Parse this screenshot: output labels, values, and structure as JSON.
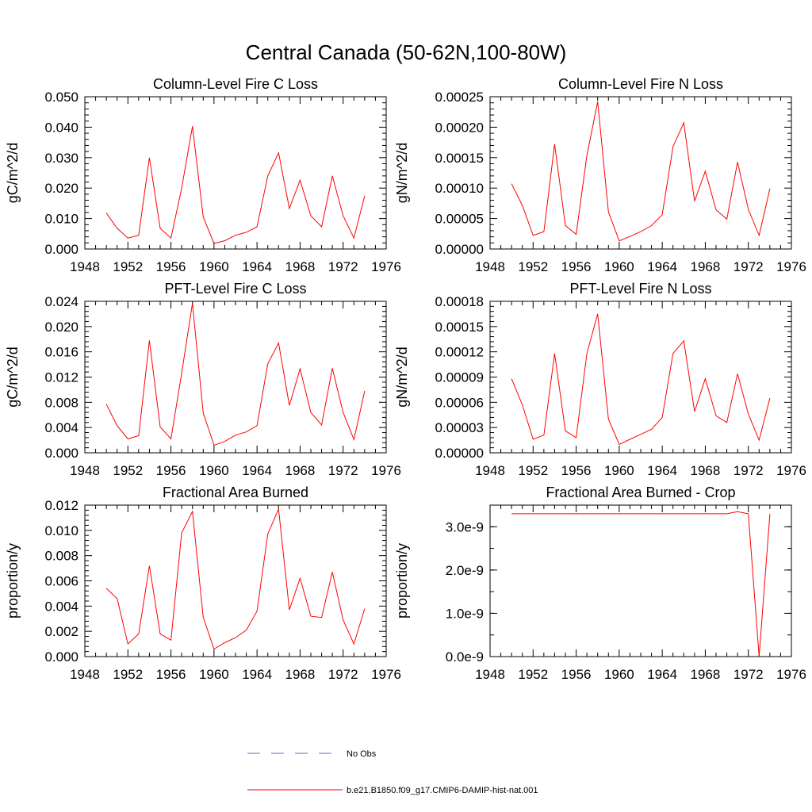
{
  "title": "Central Canada (50-62N,100-80W)",
  "x_ticks": [
    "1948",
    "1952",
    "1956",
    "1960",
    "1964",
    "1968",
    "1972",
    "1976"
  ],
  "legend": {
    "obs_label": "No Obs",
    "obs_color": "#6a6acd",
    "model_label": "b.e21.B1850.f09_g17.CMIP6-DAMIP-hist-nat.001",
    "model_color": "#ff0000"
  },
  "chart_data": [
    {
      "type": "line",
      "title": "Column-Level Fire C Loss",
      "ylabel": "gC/m^2/d",
      "xlim": [
        1948,
        1976
      ],
      "ylim": [
        0,
        0.05
      ],
      "y_ticks": [
        "0.000",
        "0.010",
        "0.020",
        "0.030",
        "0.040",
        "0.050"
      ],
      "x": [
        1950,
        1951,
        1952,
        1953,
        1954,
        1955,
        1956,
        1957,
        1958,
        1959,
        1960,
        1961,
        1962,
        1963,
        1964,
        1965,
        1966,
        1967,
        1968,
        1969,
        1970,
        1971,
        1972,
        1973,
        1974
      ],
      "series": [
        {
          "values": [
            0.0118,
            0.0068,
            0.0036,
            0.0045,
            0.03,
            0.0068,
            0.0036,
            0.02,
            0.0403,
            0.0105,
            0.0018,
            0.0027,
            0.0045,
            0.0055,
            0.0073,
            0.024,
            0.0316,
            0.0133,
            0.0226,
            0.0109,
            0.0073,
            0.024,
            0.0109,
            0.0036,
            0.0175
          ]
        }
      ]
    },
    {
      "type": "line",
      "title": "Column-Level Fire N Loss",
      "ylabel": "gN/m^2/d",
      "xlim": [
        1948,
        1976
      ],
      "ylim": [
        0,
        0.00028
      ],
      "y_ticks": [
        "0.00000",
        "0.00005",
        "0.00010",
        "0.00015",
        "0.00020",
        "0.00025"
      ],
      "x": [
        1950,
        1951,
        1952,
        1953,
        1954,
        1955,
        1956,
        1957,
        1958,
        1959,
        1960,
        1961,
        1962,
        1963,
        1964,
        1965,
        1966,
        1967,
        1968,
        1969,
        1970,
        1971,
        1972,
        1973,
        1974
      ],
      "series": [
        {
          "values": [
            0.00012,
            8e-05,
            2.5e-05,
            3.2e-05,
            0.000193,
            4.3e-05,
            2.7e-05,
            0.000172,
            0.000271,
            6.8e-05,
            1.5e-05,
            2.3e-05,
            3.2e-05,
            4.3e-05,
            6.3e-05,
            0.000188,
            0.000232,
            8.8e-05,
            0.000143,
            7.2e-05,
            5.5e-05,
            0.00016,
            7.3e-05,
            2.5e-05,
            0.000111
          ]
        }
      ]
    },
    {
      "type": "line",
      "title": "PFT-Level Fire C Loss",
      "ylabel": "gC/m^2/d",
      "xlim": [
        1948,
        1976
      ],
      "ylim": [
        0,
        0.024
      ],
      "y_ticks": [
        "0.000",
        "0.004",
        "0.008",
        "0.012",
        "0.016",
        "0.020",
        "0.024"
      ],
      "x": [
        1950,
        1951,
        1952,
        1953,
        1954,
        1955,
        1956,
        1957,
        1958,
        1959,
        1960,
        1961,
        1962,
        1963,
        1964,
        1965,
        1966,
        1967,
        1968,
        1969,
        1970,
        1971,
        1972,
        1973,
        1974
      ],
      "series": [
        {
          "values": [
            0.0077,
            0.0043,
            0.0022,
            0.0027,
            0.0178,
            0.0041,
            0.0022,
            0.0126,
            0.0237,
            0.0063,
            0.0012,
            0.0018,
            0.0028,
            0.0033,
            0.0043,
            0.0141,
            0.0174,
            0.0075,
            0.0133,
            0.0064,
            0.0044,
            0.0134,
            0.0064,
            0.0021,
            0.0098
          ]
        }
      ]
    },
    {
      "type": "line",
      "title": "PFT-Level Fire N Loss",
      "ylabel": "gN/m^2/d",
      "xlim": [
        1948,
        1976
      ],
      "ylim": [
        0,
        0.00018
      ],
      "y_ticks": [
        "0.00000",
        "0.00003",
        "0.00006",
        "0.00009",
        "0.00012",
        "0.00015",
        "0.00018"
      ],
      "x": [
        1950,
        1951,
        1952,
        1953,
        1954,
        1955,
        1956,
        1957,
        1958,
        1959,
        1960,
        1961,
        1962,
        1963,
        1964,
        1965,
        1966,
        1967,
        1968,
        1969,
        1970,
        1971,
        1972,
        1973,
        1974
      ],
      "series": [
        {
          "values": [
            8.8e-05,
            5.7e-05,
            1.6e-05,
            2.1e-05,
            0.000118,
            2.6e-05,
            1.8e-05,
            0.000118,
            0.000165,
            4e-05,
            1e-05,
            1.6e-05,
            2.2e-05,
            2.8e-05,
            4.2e-05,
            0.000118,
            0.000133,
            4.9e-05,
            8.8e-05,
            4.4e-05,
            3.6e-05,
            9.4e-05,
            4.6e-05,
            1.5e-05,
            6.5e-05
          ]
        }
      ]
    },
    {
      "type": "line",
      "title": "Fractional Area Burned",
      "ylabel": "proportion/y",
      "xlim": [
        1948,
        1976
      ],
      "ylim": [
        0,
        0.012
      ],
      "y_ticks": [
        "0.000",
        "0.002",
        "0.004",
        "0.006",
        "0.008",
        "0.010",
        "0.012"
      ],
      "x": [
        1950,
        1951,
        1952,
        1953,
        1954,
        1955,
        1956,
        1957,
        1958,
        1959,
        1960,
        1961,
        1962,
        1963,
        1964,
        1965,
        1966,
        1967,
        1968,
        1969,
        1970,
        1971,
        1972,
        1973,
        1974
      ],
      "series": [
        {
          "values": [
            0.0054,
            0.0046,
            0.001,
            0.0018,
            0.0072,
            0.0018,
            0.0013,
            0.0098,
            0.0115,
            0.0031,
            0.0006,
            0.0011,
            0.0015,
            0.0021,
            0.0036,
            0.0097,
            0.0117,
            0.0037,
            0.0062,
            0.0032,
            0.0031,
            0.0067,
            0.0029,
            0.001,
            0.0038
          ]
        }
      ]
    },
    {
      "type": "line",
      "title": "Fractional Area Burned - Crop",
      "ylabel": "proportion/y",
      "xlim": [
        1948,
        1976
      ],
      "ylim": [
        0,
        3.5e-09
      ],
      "y_ticks": [
        "0.0e-9",
        "1.0e-9",
        "2.0e-9",
        "3.0e-9"
      ],
      "x": [
        1950,
        1951,
        1952,
        1953,
        1954,
        1955,
        1956,
        1957,
        1958,
        1959,
        1960,
        1961,
        1962,
        1963,
        1964,
        1965,
        1966,
        1967,
        1968,
        1969,
        1970,
        1971,
        1972,
        1973,
        1974
      ],
      "series": [
        {
          "values": [
            3.3e-09,
            3.3e-09,
            3.3e-09,
            3.3e-09,
            3.3e-09,
            3.3e-09,
            3.3e-09,
            3.3e-09,
            3.3e-09,
            3.3e-09,
            3.3e-09,
            3.3e-09,
            3.3e-09,
            3.3e-09,
            3.3e-09,
            3.3e-09,
            3.3e-09,
            3.3e-09,
            3.3e-09,
            3.3e-09,
            3.3e-09,
            3.35e-09,
            3.3e-09,
            0.0,
            3.3e-09
          ]
        }
      ]
    }
  ]
}
